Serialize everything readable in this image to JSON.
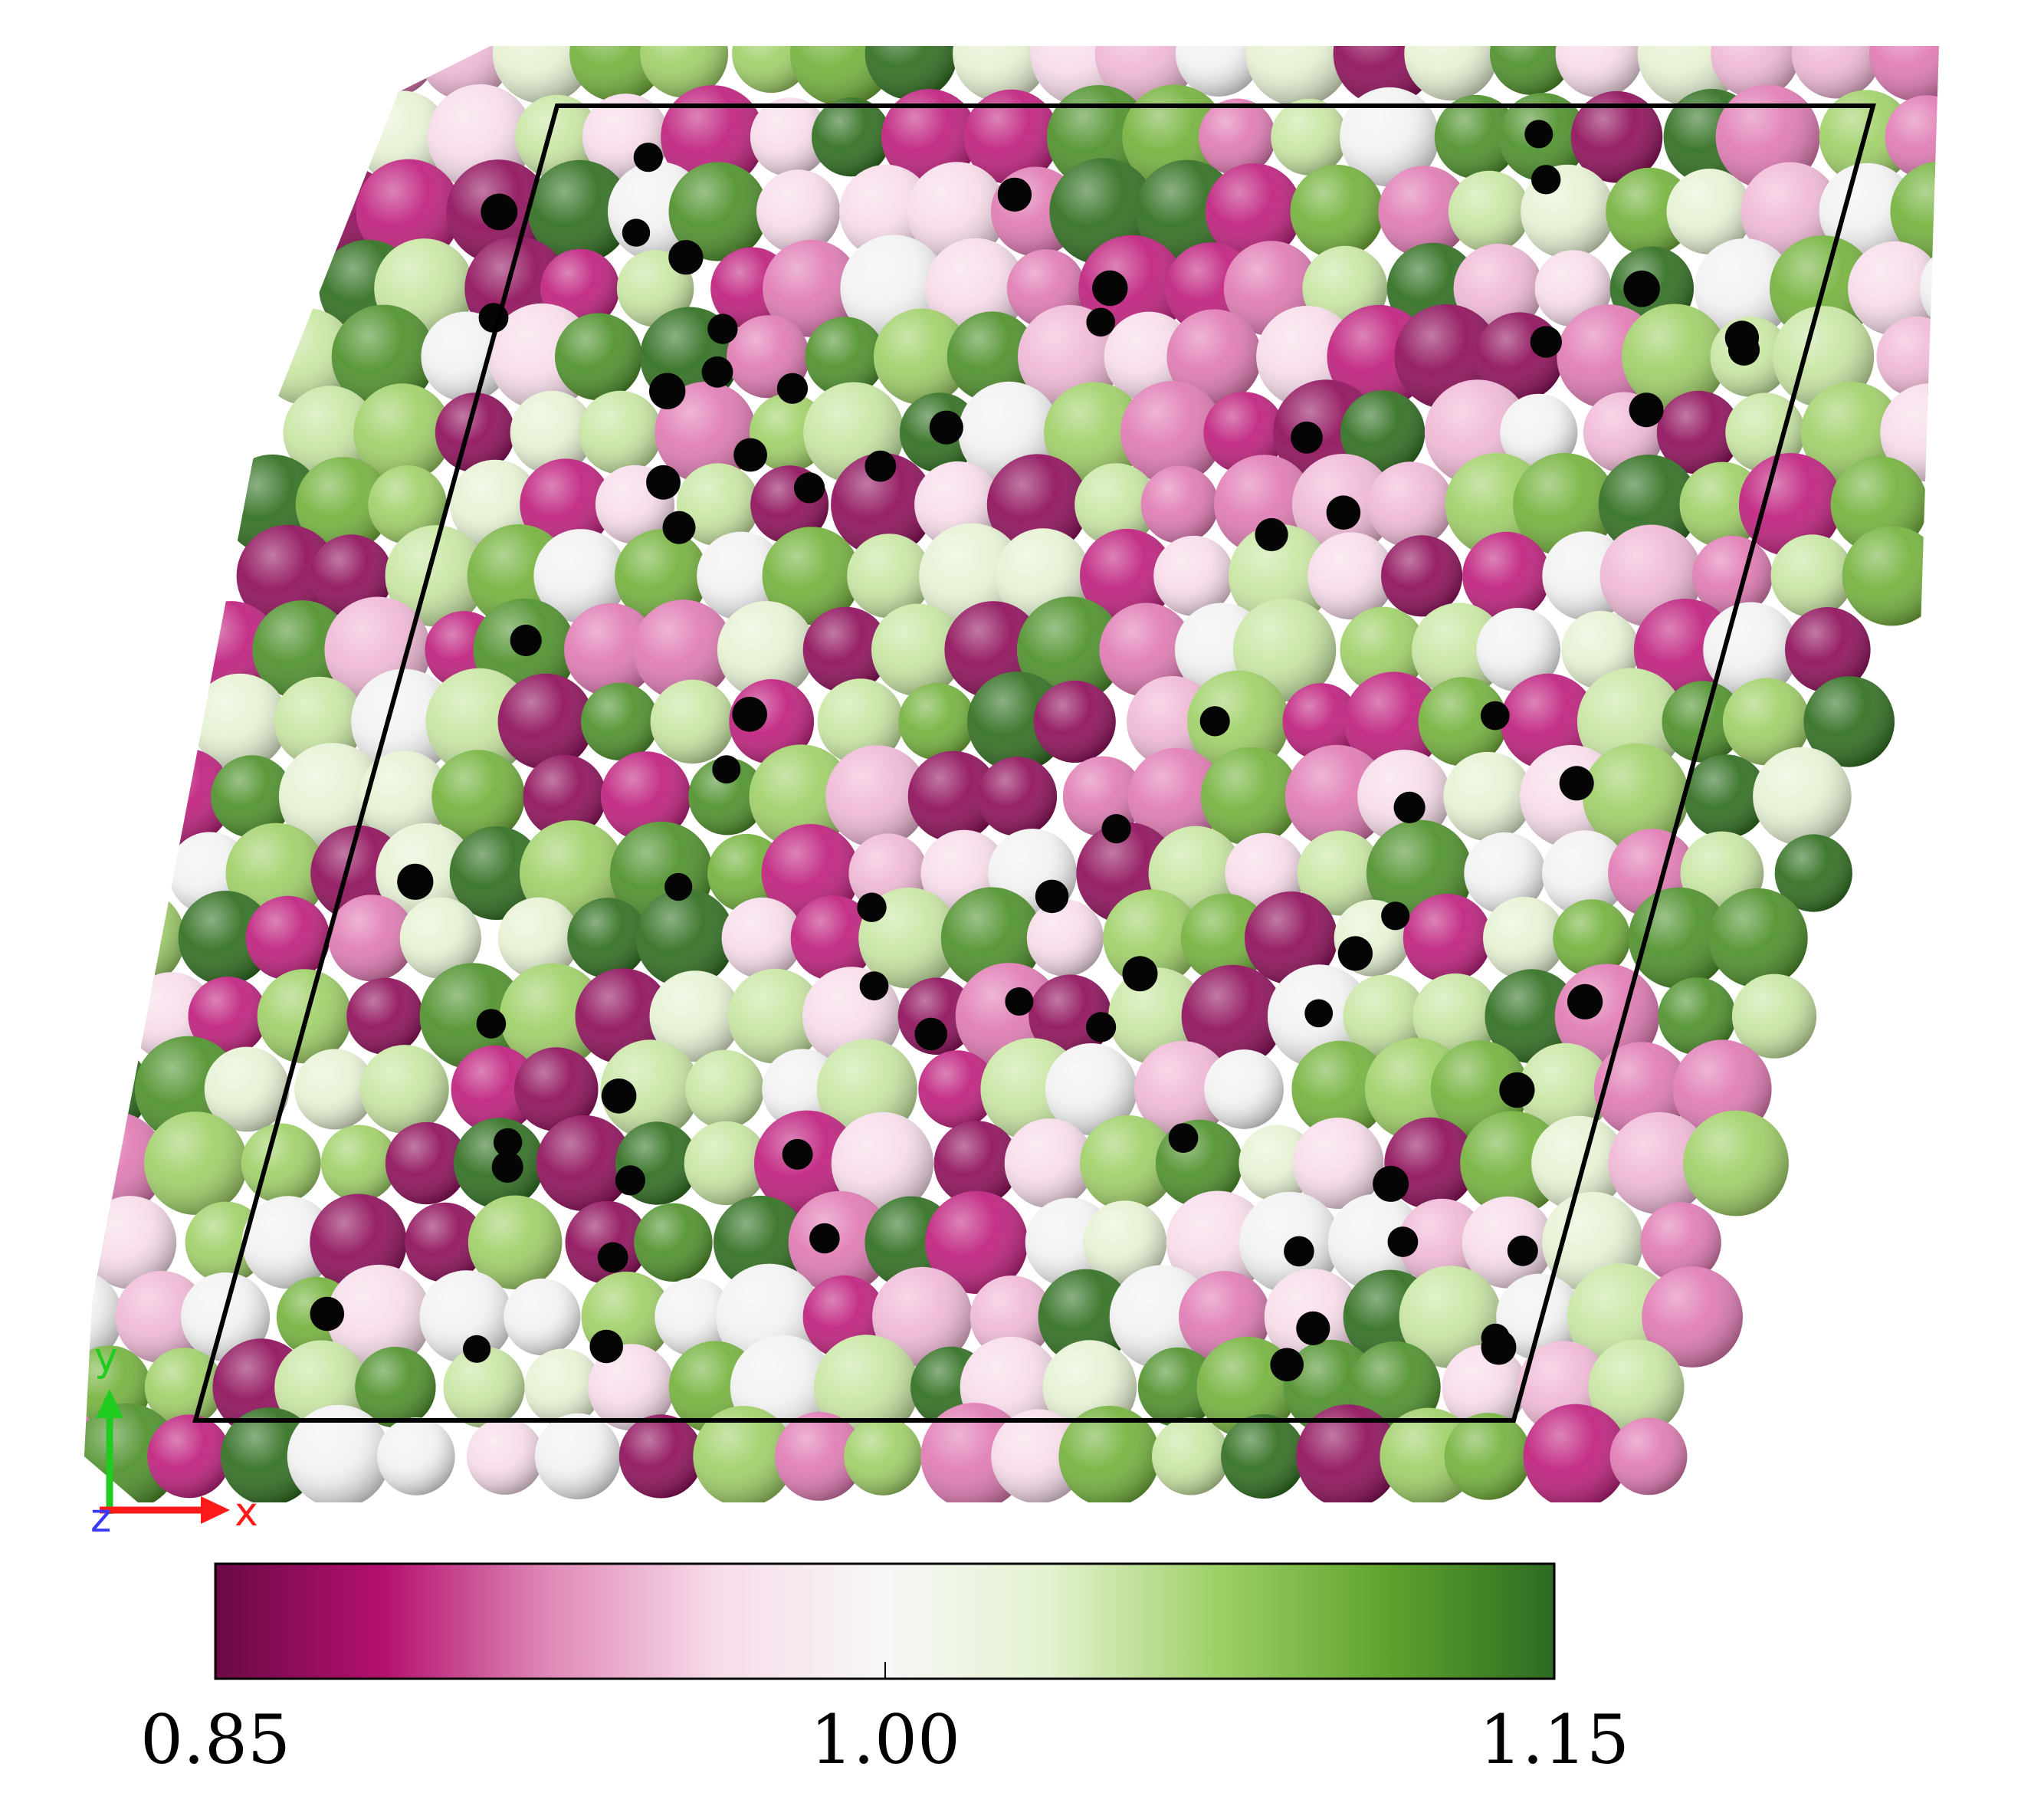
{
  "axes_indicator": {
    "x": {
      "label": "x",
      "color": "#ff1a1a"
    },
    "y": {
      "label": "y",
      "color": "#1fcc1f"
    },
    "z": {
      "label": "z",
      "color": "#3a3aff"
    }
  },
  "colorbar": {
    "min_label": "0.85",
    "mid_label": "1.00",
    "max_label": "1.15",
    "stops": [
      "#6b0a46",
      "#b3106e",
      "#e08ab8",
      "#f7dcea",
      "#f7f7f7",
      "#e3f2cf",
      "#9dcf66",
      "#5fa32d",
      "#2d6b22"
    ]
  },
  "particle_colors": [
    "#8e0e5a",
    "#bf1f7d",
    "#e07ab3",
    "#f0b8d6",
    "#f7dcea",
    "#f2f2f2",
    "#e6f2d3",
    "#c8e6a2",
    "#9fd067",
    "#74b23c",
    "#4d902a",
    "#2f6e1f"
  ],
  "small_particle_color": "#050505"
}
